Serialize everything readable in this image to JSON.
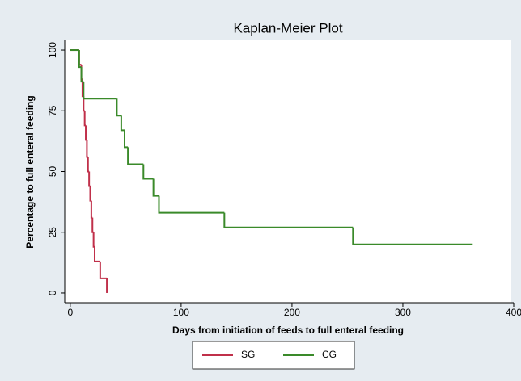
{
  "chart_data": {
    "type": "step",
    "title": "Kaplan-Meier Plot",
    "x_label": "Days from initiation of feeds to full enteral feeding",
    "y_label": "Percentage to full enteral feeding",
    "xlim": [
      -5,
      400
    ],
    "ylim": [
      -4,
      104
    ],
    "xticks": [
      0,
      100,
      200,
      300,
      400
    ],
    "yticks": [
      0,
      25,
      50,
      75,
      100
    ],
    "series": [
      {
        "name": "SG",
        "color": "#c0304a",
        "x": [
          0,
          8,
          10,
          11,
          12,
          13,
          14,
          15,
          16,
          17,
          18,
          19,
          20,
          21,
          22,
          27,
          33
        ],
        "values": [
          100,
          94,
          88,
          81,
          75,
          69,
          63,
          56,
          50,
          44,
          38,
          31,
          25,
          19,
          13,
          6,
          0
        ]
      },
      {
        "name": "CG",
        "color": "#3a8a2a",
        "x": [
          0,
          8,
          10,
          12,
          42,
          46,
          49,
          52,
          66,
          75,
          80,
          139,
          255,
          363
        ],
        "values": [
          100,
          93,
          87,
          80,
          73,
          67,
          60,
          53,
          47,
          40,
          33,
          27,
          20,
          20
        ]
      }
    ]
  }
}
